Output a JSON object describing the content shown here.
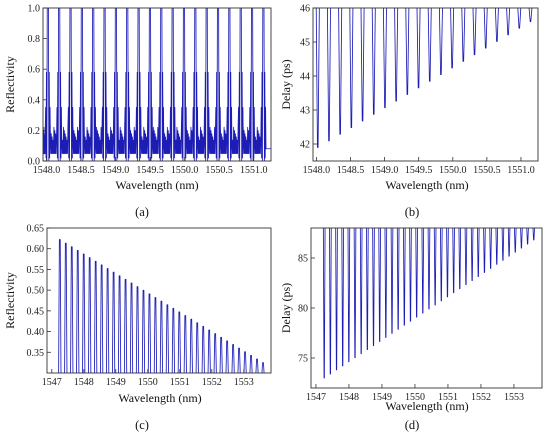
{
  "chart_data": [
    {
      "panel": "(a)",
      "type": "line",
      "xlabel": "Wavelength (nm)",
      "ylabel": "Reflectivity",
      "xlim": [
        1547.95,
        1551.25
      ],
      "ylim": [
        0,
        1.0
      ],
      "xticks": [
        1548.0,
        1548.5,
        1549.0,
        1549.5,
        1550.0,
        1550.5,
        1551.0
      ],
      "xtick_labels": [
        "1548.0",
        "1548.5",
        "1549.0",
        "1549.5",
        "1550.0",
        "1550.5",
        "1551.0"
      ],
      "yticks": [
        0,
        0.2,
        0.4,
        0.6,
        0.8,
        1.0
      ],
      "ytick_labels": [
        "0.0",
        "0.2",
        "0.4",
        "0.6",
        "0.8",
        "1.0"
      ],
      "series": [
        {
          "peak_count": 20,
          "x_start": 1548.02,
          "x_end": 1551.14,
          "peak_value": 1.0,
          "secondary_lobe": 0.58,
          "tertiary_lobe": 0.35,
          "floor_band": [
            0.08,
            0.22
          ],
          "min_value": 0.0
        }
      ]
    },
    {
      "panel": "(b)",
      "type": "line",
      "xlabel": "Wavelength (nm)",
      "ylabel": "Delay (ps)",
      "xlim": [
        1547.95,
        1551.25
      ],
      "ylim": [
        41.5,
        46.0
      ],
      "xticks": [
        1548.0,
        1548.5,
        1549.0,
        1549.5,
        1550.0,
        1550.5,
        1551.0
      ],
      "xtick_labels": [
        "1548.0",
        "1548.5",
        "1549.0",
        "1549.5",
        "1550.0",
        "1550.5",
        "1551.0"
      ],
      "yticks": [
        42,
        43,
        44,
        45,
        46
      ],
      "ytick_labels": [
        "42",
        "43",
        "44",
        "45",
        "46"
      ],
      "series": [
        {
          "spike_count": 20,
          "x_start": 1548.02,
          "x_end": 1551.14,
          "baseline": 46.0,
          "dip_min_start": 41.9,
          "dip_min_end": 45.6
        }
      ]
    },
    {
      "panel": "(c)",
      "type": "line",
      "xlabel": "Wavelength (nm)",
      "ylabel": "Reflectivity",
      "xlim": [
        1546.85,
        1553.85
      ],
      "ylim": [
        0.3,
        0.65
      ],
      "xticks": [
        1547,
        1548,
        1549,
        1550,
        1551,
        1552,
        1553
      ],
      "xtick_labels": [
        "1547",
        "1548",
        "1549",
        "1550",
        "1551",
        "1552",
        "1553"
      ],
      "yticks": [
        0.35,
        0.4,
        0.45,
        0.5,
        0.55,
        0.6,
        0.65
      ],
      "ytick_labels": [
        "0.35",
        "0.40",
        "0.45",
        "0.50",
        "0.55",
        "0.60",
        "0.65"
      ],
      "series": [
        {
          "peak_count": 35,
          "x_start": 1547.25,
          "x_end": 1553.6,
          "peak_start": 0.622,
          "peak_end": 0.325
        }
      ]
    },
    {
      "panel": "(d)",
      "type": "line",
      "xlabel": "Wavelength (nm)",
      "ylabel": "Delay (ps)",
      "xlim": [
        1546.85,
        1553.85
      ],
      "ylim": [
        72,
        88
      ],
      "xticks": [
        1547,
        1548,
        1549,
        1550,
        1551,
        1552,
        1553
      ],
      "xtick_labels": [
        "1547",
        "1548",
        "1549",
        "1550",
        "1551",
        "1552",
        "1553"
      ],
      "yticks": [
        75,
        80,
        85
      ],
      "ytick_labels": [
        "75",
        "80",
        "85"
      ],
      "series": [
        {
          "spike_count": 35,
          "x_start": 1547.25,
          "x_end": 1553.6,
          "baseline": 88,
          "dip_min_start": 73.0,
          "dip_min_end": 86.8
        }
      ]
    }
  ]
}
